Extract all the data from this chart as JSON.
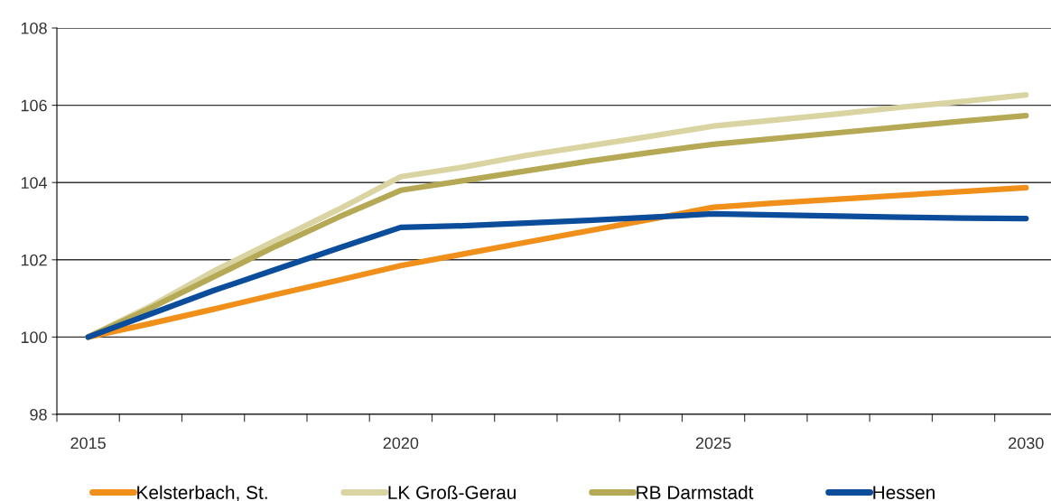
{
  "chart_data": {
    "type": "line",
    "x": [
      2015,
      2016,
      2017,
      2018,
      2019,
      2020,
      2021,
      2022,
      2023,
      2024,
      2025,
      2026,
      2027,
      2028,
      2029,
      2030
    ],
    "series": [
      {
        "name": "Kelsterbach, St.",
        "color": "#f0901a",
        "values": [
          100,
          100.35,
          100.72,
          101.1,
          101.47,
          101.85,
          102.15,
          102.45,
          102.75,
          103.05,
          103.36,
          103.47,
          103.57,
          103.67,
          103.77,
          103.87
        ]
      },
      {
        "name": "LK Groß-Gerau",
        "color": "#dad4a2",
        "values": [
          100,
          100.8,
          101.7,
          102.5,
          103.3,
          104.15,
          104.4,
          104.7,
          104.95,
          105.2,
          105.46,
          105.62,
          105.78,
          105.95,
          106.1,
          106.27
        ]
      },
      {
        "name": "RB Darmstadt",
        "color": "#b5a955",
        "values": [
          100,
          100.75,
          101.55,
          102.35,
          103.1,
          103.8,
          104.05,
          104.3,
          104.55,
          104.78,
          104.99,
          105.14,
          105.29,
          105.44,
          105.59,
          105.73
        ]
      },
      {
        "name": "Hessen",
        "color": "#0b4d9b",
        "values": [
          100,
          100.6,
          101.2,
          101.75,
          102.3,
          102.84,
          102.88,
          102.95,
          103.02,
          103.1,
          103.19,
          103.16,
          103.13,
          103.1,
          103.08,
          103.07
        ]
      }
    ],
    "xlim": [
      2014.5,
      2030.4
    ],
    "xticks": [
      2015,
      2020,
      2025,
      2030,
      {
        "value": 2014.5,
        "label": null
      },
      {
        "value": 2015.5,
        "label": null
      },
      {
        "value": 2016.5,
        "label": null
      },
      {
        "value": 2017.5,
        "label": null
      },
      {
        "value": 2018.5,
        "label": null
      },
      {
        "value": 2019.5,
        "label": null
      },
      {
        "value": 2020.5,
        "label": null
      },
      {
        "value": 2021.5,
        "label": null
      },
      {
        "value": 2022.5,
        "label": null
      },
      {
        "value": 2023.5,
        "label": null
      },
      {
        "value": 2024.5,
        "label": null
      },
      {
        "value": 2025.5,
        "label": null
      },
      {
        "value": 2026.5,
        "label": null
      },
      {
        "value": 2027.5,
        "label": null
      },
      {
        "value": 2028.5,
        "label": null
      },
      {
        "value": 2029.5,
        "label": null
      }
    ],
    "ylim": [
      98,
      108
    ],
    "yticks": [
      98,
      100,
      102,
      104,
      106,
      108
    ],
    "grid": "y",
    "legend": "bottom",
    "marker": "none",
    "line_style": "solid"
  }
}
